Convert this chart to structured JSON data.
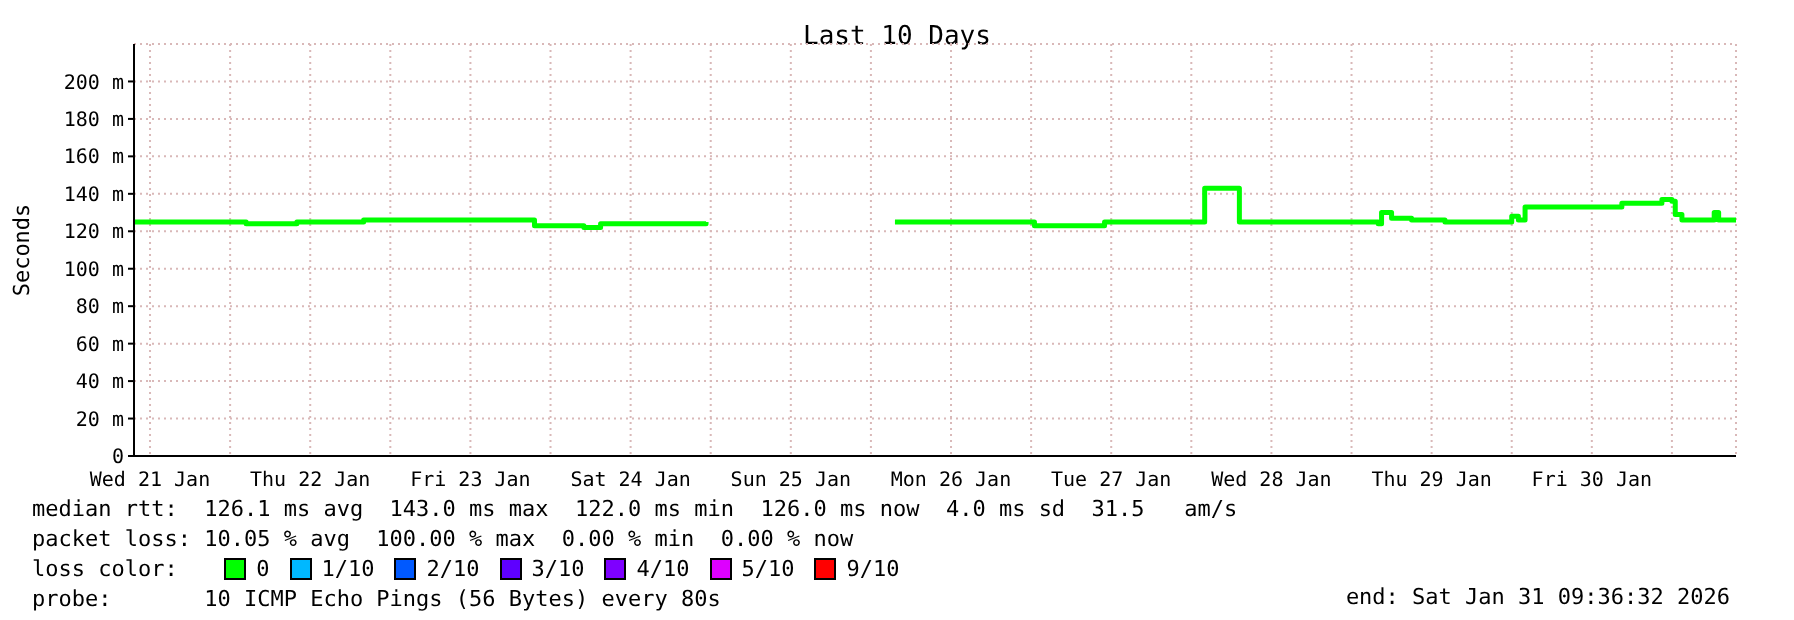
{
  "chart_data": {
    "type": "step",
    "title": "Last 10 Days",
    "ylabel": "Seconds",
    "legend_title": "loss color:",
    "legend": "bottom",
    "grid": true,
    "marker": "none",
    "line_style": "solid",
    "xlim": [
      "2026-01-21T09:36",
      "2026-01-31T09:36"
    ],
    "xticks": [
      {
        "value": "2026-01-21T12:00",
        "label": "Wed 21 Jan"
      },
      {
        "value": "2026-01-22T12:00",
        "label": "Thu 22 Jan"
      },
      {
        "value": "2026-01-23T12:00",
        "label": "Fri 23 Jan"
      },
      {
        "value": "2026-01-24T12:00",
        "label": "Sat 24 Jan"
      },
      {
        "value": "2026-01-25T12:00",
        "label": "Sun 25 Jan"
      },
      {
        "value": "2026-01-26T12:00",
        "label": "Mon 26 Jan"
      },
      {
        "value": "2026-01-27T12:00",
        "label": "Tue 27 Jan"
      },
      {
        "value": "2026-01-28T12:00",
        "label": "Wed 28 Jan"
      },
      {
        "value": "2026-01-29T12:00",
        "label": "Thu 29 Jan"
      },
      {
        "value": "2026-01-30T12:00",
        "label": "Fri 30 Jan"
      },
      {
        "value": "2026-01-22T00:00",
        "label": null
      },
      {
        "value": "2026-01-23T00:00",
        "label": null
      },
      {
        "value": "2026-01-24T00:00",
        "label": null
      },
      {
        "value": "2026-01-25T00:00",
        "label": null
      },
      {
        "value": "2026-01-26T00:00",
        "label": null
      },
      {
        "value": "2026-01-27T00:00",
        "label": null
      },
      {
        "value": "2026-01-28T00:00",
        "label": null
      },
      {
        "value": "2026-01-29T00:00",
        "label": null
      },
      {
        "value": "2026-01-30T00:00",
        "label": null
      },
      {
        "value": "2026-01-31T00:00",
        "label": null
      }
    ],
    "ylim": [
      0,
      220
    ],
    "yticks": [
      0,
      {
        "value": 20,
        "label": "20 m"
      },
      {
        "value": 40,
        "label": "40 m"
      },
      {
        "value": 60,
        "label": "60 m"
      },
      {
        "value": 80,
        "label": "80 m"
      },
      {
        "value": 100,
        "label": "100 m"
      },
      {
        "value": 120,
        "label": "120 m"
      },
      {
        "value": 140,
        "label": "140 m"
      },
      {
        "value": 160,
        "label": "160 m"
      },
      {
        "value": 180,
        "label": "180 m"
      },
      {
        "value": 200,
        "label": "200 m"
      }
    ],
    "annotations": [
      "median rtt:  126.1 ms avg  143.0 ms max  122.0 ms min  126.0 ms now  4.0 ms sd  31.5   am/s",
      "packet loss: 10.05 % avg  100.00 % max  0.00 % min  0.00 % now",
      "probe:       10 ICMP Echo Pings (56 Bytes) every 80s",
      "end: Sat Jan 31 09:36:32 2026"
    ],
    "series": [
      {
        "name": "0",
        "color": "#00ff00",
        "x": [
          "2026-01-21T09:36",
          "2026-01-22T02:24",
          "2026-01-22T10:00",
          "2026-01-22T20:00",
          "2026-01-23T09:00",
          "2026-01-23T21:36",
          "2026-01-24T05:00",
          "2026-01-24T07:30",
          "2026-01-24T23:18",
          "2026-01-25T12:00",
          "2026-01-26T03:36",
          "2026-01-27T00:30",
          "2026-01-27T11:00",
          "2026-01-28T01:00",
          "2026-01-28T02:00",
          "2026-01-28T06:36",
          "2026-01-28T07:12",
          "2026-01-29T04:00",
          "2026-01-29T04:30",
          "2026-01-29T06:00",
          "2026-01-29T09:00",
          "2026-01-29T14:00",
          "2026-01-30T00:00",
          "2026-01-30T01:00",
          "2026-01-30T02:00",
          "2026-01-30T10:30",
          "2026-01-30T16:30",
          "2026-01-30T22:30",
          "2026-01-31T00:00",
          "2026-01-31T00:30",
          "2026-01-31T01:30",
          "2026-01-31T06:00",
          "2026-01-31T06:20",
          "2026-01-31T07:00",
          "2026-01-31T09:36"
        ],
        "values": [
          125,
          124,
          125,
          126,
          126,
          123,
          122,
          124,
          125,
          null,
          125,
          123,
          125,
          125,
          143,
          143,
          125,
          124,
          130,
          127,
          126,
          125,
          128,
          126,
          133,
          133,
          135,
          137,
          136,
          129,
          126,
          126,
          130,
          126,
          126
        ]
      },
      {
        "name": "1/10",
        "color": "#00b8ff"
      },
      {
        "name": "2/10",
        "color": "#0059ff"
      },
      {
        "name": "3/10",
        "color": "#5e00ff"
      },
      {
        "name": "4/10",
        "color": "#7e00ff"
      },
      {
        "name": "5/10",
        "color": "#dd00ff"
      },
      {
        "name": "9/10",
        "color": "#ff0000"
      }
    ]
  }
}
